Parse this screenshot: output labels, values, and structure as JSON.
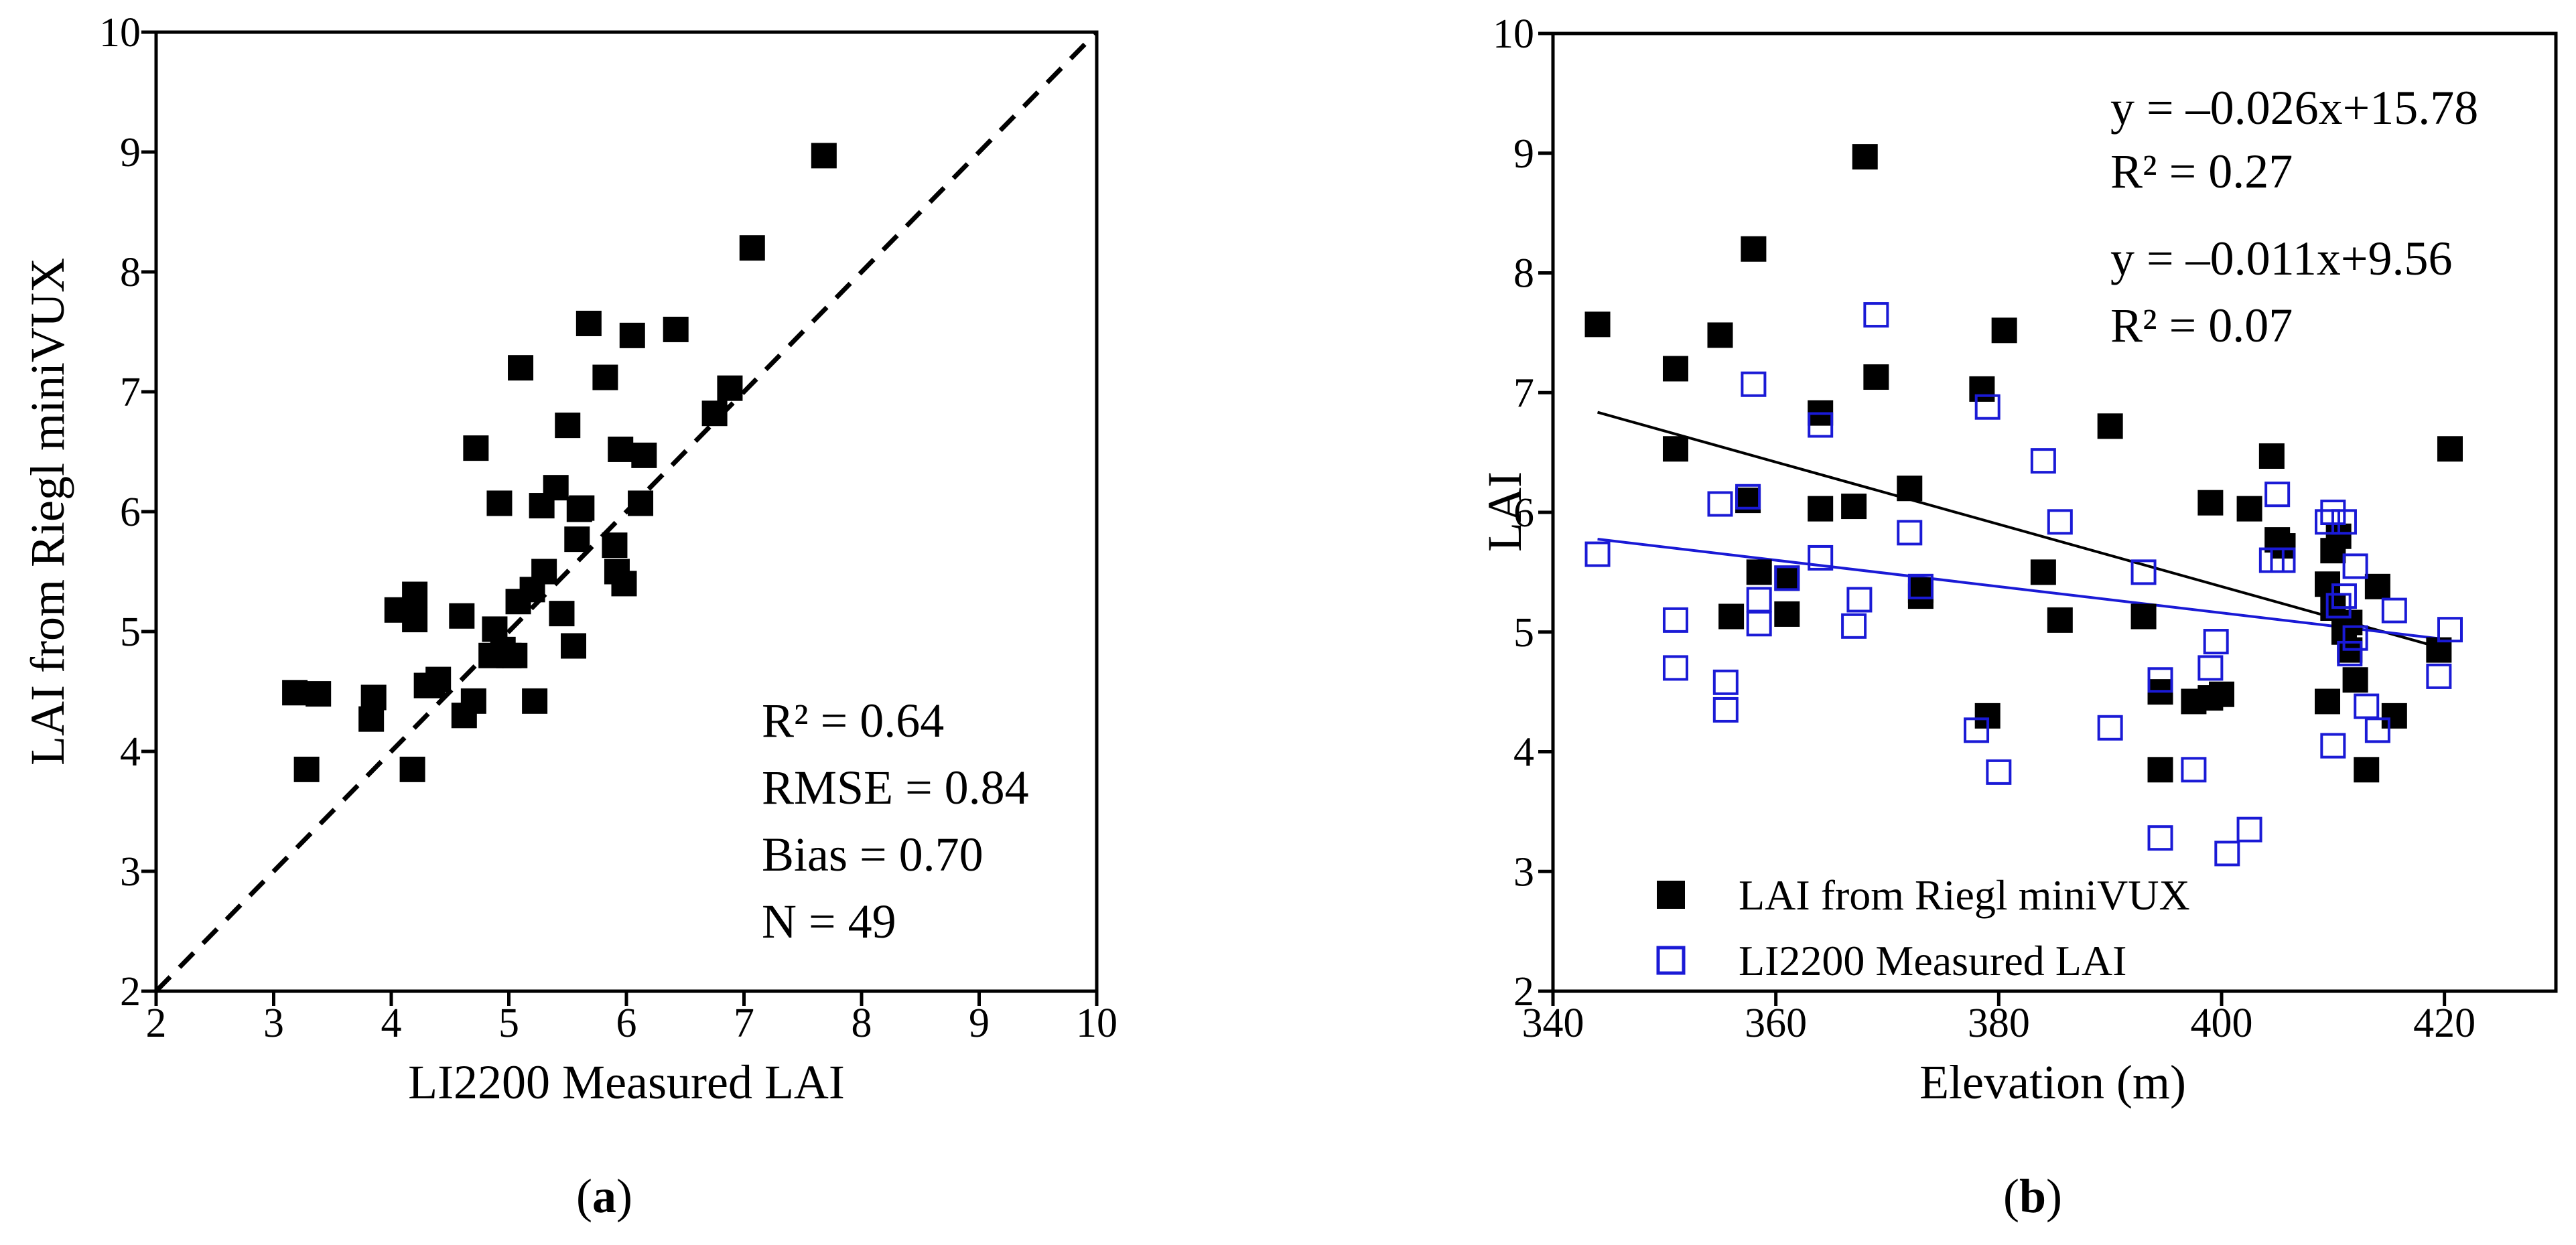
{
  "chart_data": [
    {
      "panel": "a",
      "panel_label": "a",
      "type": "scatter",
      "xlabel": "LI2200 Measured LAI",
      "ylabel": "LAI from Riegl miniVUX",
      "xlim": [
        2,
        10
      ],
      "ylim": [
        2,
        10
      ],
      "xticks": [
        2,
        3,
        4,
        5,
        6,
        7,
        8,
        9,
        10
      ],
      "yticks": [
        2,
        3,
        4,
        5,
        6,
        7,
        8,
        9,
        10
      ],
      "reference_line": "1:1",
      "stats": [
        "R² = 0.64",
        "RMSE = 0.84",
        "Bias = 0.70",
        "N = 49"
      ],
      "series": [
        {
          "name": "LAI from Riegl miniVUX",
          "color": "#000000",
          "marker": "filled-square",
          "points": [
            [
              3.18,
              4.49
            ],
            [
              3.38,
              4.48
            ],
            [
              3.28,
              3.85
            ],
            [
              3.85,
              4.45
            ],
            [
              3.83,
              4.27
            ],
            [
              4.05,
              5.18
            ],
            [
              4.2,
              5.31
            ],
            [
              4.2,
              5.1
            ],
            [
              4.35,
              4.55
            ],
            [
              4.4,
              4.6
            ],
            [
              4.18,
              3.85
            ],
            [
              4.6,
              5.13
            ],
            [
              4.62,
              4.3
            ],
            [
              4.7,
              4.42
            ],
            [
              4.72,
              6.53
            ],
            [
              4.85,
              4.8
            ],
            [
              4.88,
              5.02
            ],
            [
              4.92,
              6.07
            ],
            [
              4.95,
              4.85
            ],
            [
              5.05,
              4.8
            ],
            [
              5.08,
              5.25
            ],
            [
              5.1,
              7.2
            ],
            [
              5.2,
              5.35
            ],
            [
              5.22,
              4.42
            ],
            [
              5.28,
              6.05
            ],
            [
              5.3,
              5.5
            ],
            [
              5.4,
              6.2
            ],
            [
              5.45,
              5.15
            ],
            [
              5.5,
              6.72
            ],
            [
              5.55,
              4.88
            ],
            [
              5.58,
              5.77
            ],
            [
              5.62,
              6.03
            ],
            [
              5.68,
              7.57
            ],
            [
              5.82,
              7.12
            ],
            [
              5.9,
              5.72
            ],
            [
              5.92,
              5.5
            ],
            [
              5.95,
              6.52
            ],
            [
              5.98,
              5.4
            ],
            [
              6.05,
              7.47
            ],
            [
              6.12,
              6.07
            ],
            [
              6.15,
              6.47
            ],
            [
              6.42,
              7.52
            ],
            [
              6.75,
              6.82
            ],
            [
              6.88,
              7.03
            ],
            [
              7.07,
              8.2
            ],
            [
              7.68,
              8.97
            ],
            [
              4.3,
              4.55
            ],
            [
              5.0,
              4.8
            ],
            [
              5.6,
              6.02
            ]
          ]
        }
      ]
    },
    {
      "panel": "b",
      "panel_label": "b",
      "type": "scatter",
      "xlabel": "Elevation (m)",
      "ylabel": "LAI",
      "xlim": [
        340,
        430
      ],
      "ylim": [
        2,
        10
      ],
      "xticks": [
        340,
        360,
        380,
        400,
        420
      ],
      "yticks": [
        2,
        3,
        4,
        5,
        6,
        7,
        8,
        9,
        10
      ],
      "legend_position": "bottom-left",
      "series": [
        {
          "name": "LAI from Riegl miniVUX",
          "color": "#000000",
          "marker": "filled-square",
          "fit_label": "y = –0.026x+15.78",
          "r2_label": "R² = 0.27",
          "fit": {
            "slope": -0.026,
            "intercept": 15.78,
            "x_range": [
              344,
              420
            ]
          },
          "points": [
            [
              344,
              7.57
            ],
            [
              351,
              7.2
            ],
            [
              351,
              6.53
            ],
            [
              355,
              7.48
            ],
            [
              356,
              5.13
            ],
            [
              357.5,
              6.1
            ],
            [
              358,
              8.2
            ],
            [
              358.5,
              5.5
            ],
            [
              361,
              5.15
            ],
            [
              364,
              6.83
            ],
            [
              364,
              6.03
            ],
            [
              367,
              6.05
            ],
            [
              368,
              8.97
            ],
            [
              369,
              7.13
            ],
            [
              372,
              6.2
            ],
            [
              373,
              5.3
            ],
            [
              378.5,
              7.03
            ],
            [
              379,
              4.3
            ],
            [
              380.5,
              7.52
            ],
            [
              384,
              5.5
            ],
            [
              385.5,
              5.1
            ],
            [
              390,
              6.72
            ],
            [
              393,
              5.13
            ],
            [
              394.5,
              4.5
            ],
            [
              394.5,
              3.85
            ],
            [
              397.5,
              4.42
            ],
            [
              399,
              6.08
            ],
            [
              399,
              4.45
            ],
            [
              400,
              4.48
            ],
            [
              402.5,
              6.03
            ],
            [
              404.5,
              6.47
            ],
            [
              405,
              5.77
            ],
            [
              405.5,
              5.72
            ],
            [
              409.5,
              5.4
            ],
            [
              409.5,
              4.42
            ],
            [
              410,
              5.2
            ],
            [
              410,
              5.68
            ],
            [
              410.5,
              5.8
            ],
            [
              411,
              5.0
            ],
            [
              411.5,
              5.08
            ],
            [
              412,
              4.6
            ],
            [
              413,
              3.85
            ],
            [
              414,
              5.38
            ],
            [
              415.5,
              4.3
            ],
            [
              419.5,
              4.85
            ],
            [
              420.5,
              6.53
            ],
            [
              361,
              5.45
            ],
            [
              373,
              5.35
            ],
            [
              411.5,
              4.85
            ]
          ]
        },
        {
          "name": "LI2200 Measured LAI",
          "color": "#1a1ad6",
          "marker": "open-square",
          "fit_label": "y = –0.011x+9.56",
          "r2_label": "R² = 0.07",
          "fit": {
            "slope": -0.011,
            "intercept": 9.56,
            "x_range": [
              344,
              420
            ]
          },
          "points": [
            [
              344,
              5.65
            ],
            [
              351,
              4.7
            ],
            [
              351,
              5.1
            ],
            [
              355,
              6.07
            ],
            [
              355.5,
              4.58
            ],
            [
              355.5,
              4.35
            ],
            [
              357.5,
              6.13
            ],
            [
              358,
              7.07
            ],
            [
              358.5,
              5.27
            ],
            [
              358.5,
              5.07
            ],
            [
              361,
              5.45
            ],
            [
              364,
              6.73
            ],
            [
              364,
              5.62
            ],
            [
              367,
              5.05
            ],
            [
              367.5,
              5.27
            ],
            [
              369,
              7.65
            ],
            [
              372,
              5.83
            ],
            [
              373,
              5.38
            ],
            [
              378,
              4.18
            ],
            [
              379,
              6.88
            ],
            [
              380,
              3.83
            ],
            [
              384,
              6.43
            ],
            [
              385.5,
              5.92
            ],
            [
              390,
              4.2
            ],
            [
              393,
              5.5
            ],
            [
              394.5,
              4.6
            ],
            [
              394.5,
              3.28
            ],
            [
              397.5,
              3.85
            ],
            [
              399,
              4.7
            ],
            [
              399.5,
              4.92
            ],
            [
              400.5,
              3.15
            ],
            [
              402.5,
              3.35
            ],
            [
              404.5,
              5.6
            ],
            [
              405,
              6.15
            ],
            [
              405.5,
              5.6
            ],
            [
              409.5,
              5.92
            ],
            [
              410,
              6.0
            ],
            [
              410,
              4.05
            ],
            [
              410.5,
              5.22
            ],
            [
              411,
              5.92
            ],
            [
              411,
              5.3
            ],
            [
              411.5,
              4.82
            ],
            [
              412,
              5.55
            ],
            [
              413,
              4.38
            ],
            [
              414,
              4.18
            ],
            [
              415.5,
              5.18
            ],
            [
              419.5,
              4.63
            ],
            [
              420.5,
              5.02
            ],
            [
              412,
              4.95
            ]
          ]
        }
      ]
    }
  ]
}
